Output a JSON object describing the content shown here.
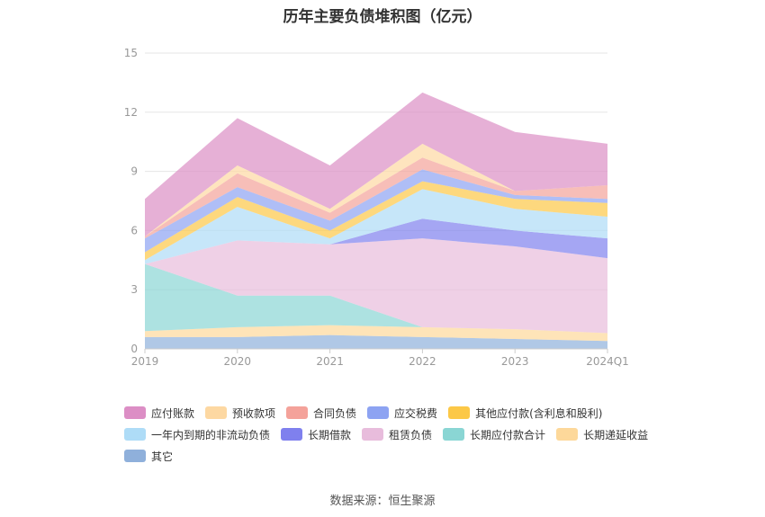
{
  "chart_data": {
    "type": "area",
    "stacked": true,
    "title": "历年主要负债堆积图（亿元）",
    "categories": [
      "2019",
      "2020",
      "2021",
      "2022",
      "2023",
      "2024Q1"
    ],
    "ylim": [
      0,
      15
    ],
    "yticks": [
      "0",
      "3",
      "6",
      "9",
      "12",
      "15"
    ],
    "grid": true,
    "legend_position": "bottom",
    "series": [
      {
        "name": "其它",
        "color": "#8fb0db",
        "values": [
          0.6,
          0.6,
          0.7,
          0.6,
          0.5,
          0.4
        ]
      },
      {
        "name": "长期递延收益",
        "color": "#fdd89a",
        "values": [
          0.3,
          0.5,
          0.5,
          0.5,
          0.5,
          0.4
        ]
      },
      {
        "name": "长期应付款合计",
        "color": "#8ad6d4",
        "values": [
          3.4,
          1.6,
          1.5,
          0.0,
          0.0,
          0.0
        ]
      },
      {
        "name": "租赁负债",
        "color": "#e8bcdc",
        "values": [
          0.0,
          2.8,
          2.6,
          4.5,
          4.2,
          3.8
        ]
      },
      {
        "name": "长期借款",
        "color": "#7f80ee",
        "values": [
          0.0,
          0.0,
          0.0,
          1.0,
          0.8,
          1.0
        ]
      },
      {
        "name": "一年内到期的非流动负债",
        "color": "#aedcf7",
        "values": [
          0.2,
          1.7,
          0.3,
          1.5,
          1.1,
          1.1
        ]
      },
      {
        "name": "其他应付款(含利息和股利)",
        "color": "#fcc847",
        "values": [
          0.4,
          0.5,
          0.4,
          0.4,
          0.5,
          0.7
        ]
      },
      {
        "name": "应交税费",
        "color": "#8da3f2",
        "values": [
          0.7,
          0.5,
          0.5,
          0.6,
          0.2,
          0.2
        ]
      },
      {
        "name": "合同负债",
        "color": "#f4a29a",
        "values": [
          0.1,
          0.7,
          0.4,
          0.6,
          0.2,
          0.7
        ]
      },
      {
        "name": "预收款项",
        "color": "#fdd8a2",
        "values": [
          0.0,
          0.4,
          0.2,
          0.7,
          0.0,
          0.0
        ]
      },
      {
        "name": "应付账款",
        "color": "#dc8ec5",
        "values": [
          1.9,
          2.4,
          2.2,
          2.6,
          3.0,
          2.1
        ]
      }
    ],
    "legend_order": [
      "应付账款",
      "预收款项",
      "合同负债",
      "应交税费",
      "其他应付款(含利息和股利)",
      "一年内到期的非流动负债",
      "长期借款",
      "租赁负债",
      "长期应付款合计",
      "长期递延收益",
      "其它"
    ]
  },
  "source_note": "数据来源：恒生聚源"
}
